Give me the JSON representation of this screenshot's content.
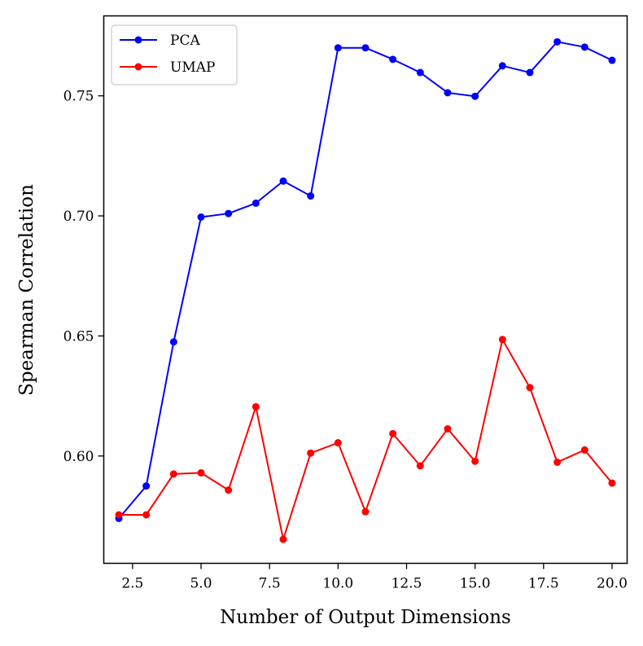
{
  "chart_data": {
    "type": "line",
    "title": "",
    "xlabel": "Number of Output Dimensions",
    "ylabel": "Spearman Correlation",
    "xlim": [
      1.45,
      20.55
    ],
    "ylim": [
      0.5553,
      0.7833
    ],
    "xticks": [
      2.5,
      5.0,
      7.5,
      10.0,
      12.5,
      15.0,
      17.5,
      20.0
    ],
    "xtick_labels": [
      "2.5",
      "5.0",
      "7.5",
      "10.0",
      "12.5",
      "15.0",
      "17.5",
      "20.0"
    ],
    "yticks": [
      0.6,
      0.65,
      0.7,
      0.75
    ],
    "ytick_labels": [
      "0.60",
      "0.65",
      "0.70",
      "0.75"
    ],
    "grid": false,
    "legend_position": "top-left",
    "x": [
      2,
      3,
      4,
      5,
      6,
      7,
      8,
      9,
      10,
      11,
      12,
      13,
      14,
      15,
      16,
      17,
      18,
      19,
      20
    ],
    "series": [
      {
        "name": "PCA",
        "color": "#0000ff",
        "values": [
          0.574,
          0.5875,
          0.6475,
          0.6995,
          0.701,
          0.7053,
          0.7145,
          0.7083,
          0.77,
          0.77,
          0.7652,
          0.7597,
          0.7513,
          0.7498,
          0.7625,
          0.7597,
          0.7725,
          0.7703,
          0.7648
        ]
      },
      {
        "name": "UMAP",
        "color": "#ff0000",
        "values": [
          0.5755,
          0.5755,
          0.5925,
          0.593,
          0.5858,
          0.6205,
          0.5653,
          0.6012,
          0.6055,
          0.5768,
          0.6093,
          0.5959,
          0.6113,
          0.5978,
          0.6485,
          0.6285,
          0.5974,
          0.6025,
          0.5887
        ]
      }
    ]
  }
}
